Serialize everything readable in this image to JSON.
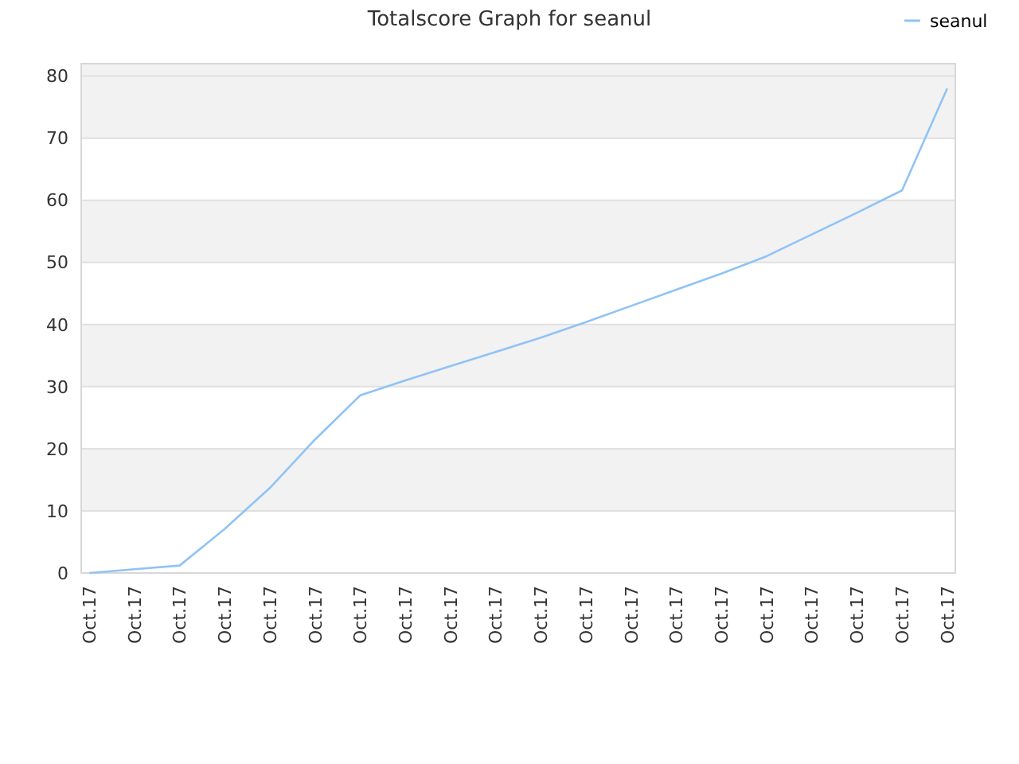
{
  "chart_data": {
    "type": "line",
    "title": "Totalscore Graph for seanul",
    "categories": [
      "Oct.17",
      "Oct.17",
      "Oct.17",
      "Oct.17",
      "Oct.17",
      "Oct.17",
      "Oct.17",
      "Oct.17",
      "Oct.17",
      "Oct.17",
      "Oct.17",
      "Oct.17",
      "Oct.17",
      "Oct.17",
      "Oct.17",
      "Oct.17",
      "Oct.17",
      "Oct.17",
      "Oct.17",
      "Oct.17"
    ],
    "series": [
      {
        "name": "seanul",
        "color": "#90c3f5",
        "values": [
          0,
          0.6,
          1.2,
          7.1,
          13.7,
          21.5,
          28.6,
          31,
          33.3,
          35.6,
          37.9,
          40.4,
          43,
          45.6,
          48.2,
          51,
          54.5,
          58,
          61.6,
          78
        ]
      }
    ],
    "ylim": [
      0,
      82
    ],
    "yticks": [
      0,
      10,
      20,
      30,
      40,
      50,
      60,
      70,
      80
    ],
    "bands": [
      {
        "axis": "y",
        "from": 10,
        "to": 20,
        "color": "#f2f2f2"
      },
      {
        "axis": "y",
        "from": 30,
        "to": 40,
        "color": "#f2f2f2"
      },
      {
        "axis": "y",
        "from": 50,
        "to": 60,
        "color": "#f2f2f2"
      },
      {
        "axis": "y",
        "from": 70,
        "to": 82,
        "color": "#f2f2f2"
      }
    ],
    "grid": "y",
    "legend": "top right",
    "marker": "none",
    "line_style": "solid"
  }
}
